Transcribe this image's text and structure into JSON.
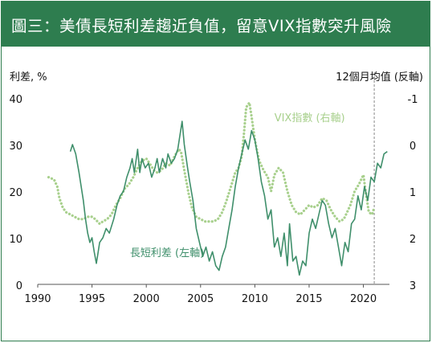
{
  "header": {
    "title": "圖三：美債長短利差趨近負值，留意VIX指數突升風險"
  },
  "chart_data": {
    "type": "line",
    "title": "圖三：美債長短利差趨近負值，留意VIX指數突升風險",
    "ylabel": "利差, %",
    "y2label": "12個月均值 (反軸)",
    "xlim": [
      1990,
      2022.4
    ],
    "ylim": [
      0,
      40
    ],
    "y2lim": [
      3,
      -1
    ],
    "y2_inverted": true,
    "x_ticks": [
      1990,
      1995,
      2000,
      2005,
      2010,
      2015,
      2020
    ],
    "y_ticks": [
      0,
      10,
      20,
      30,
      40
    ],
    "y2_ticks": [
      3,
      2,
      1,
      0,
      -1
    ],
    "vline_x": 2021.0,
    "grid": false,
    "series": [
      {
        "name": "VIX指數 (右軸)",
        "axis": "right",
        "style": "dotted",
        "color": "#a8d08d",
        "x": [
          1991.0,
          1991.5,
          1991.8,
          1992.0,
          1992.3,
          1992.6,
          1993.0,
          1993.4,
          1993.8,
          1994.2,
          1994.6,
          1995.0,
          1995.3,
          1995.7,
          1996.0,
          1996.4,
          1996.8,
          1997.2,
          1997.6,
          1998.0,
          1998.4,
          1998.8,
          1999.2,
          1999.6,
          2000.0,
          2000.3,
          2000.7,
          2001.0,
          2001.4,
          2001.8,
          2002.2,
          2002.6,
          2003.0,
          2003.2,
          2003.5,
          2003.9,
          2004.2,
          2004.6,
          2005.0,
          2005.4,
          2005.8,
          2006.2,
          2006.6,
          2007.0,
          2007.4,
          2007.8,
          2008.2,
          2008.5,
          2008.8,
          2009.0,
          2009.2,
          2009.5,
          2009.7,
          2010.0,
          2010.4,
          2010.8,
          2011.2,
          2011.5,
          2011.8,
          2012.2,
          2012.6,
          2013.0,
          2013.4,
          2013.8,
          2014.2,
          2014.6,
          2015.0,
          2015.4,
          2015.8,
          2016.2,
          2016.6,
          2017.0,
          2017.4,
          2017.8,
          2018.2,
          2018.5,
          2018.8,
          2019.2,
          2019.6,
          2020.0,
          2020.2,
          2020.5,
          2020.8,
          2021.0
        ],
        "values": [
          0.7,
          0.75,
          0.9,
          1.15,
          1.35,
          1.45,
          1.5,
          1.55,
          1.6,
          1.6,
          1.55,
          1.55,
          1.6,
          1.7,
          1.65,
          1.6,
          1.5,
          1.3,
          1.15,
          0.95,
          0.85,
          0.7,
          0.5,
          0.35,
          0.3,
          0.4,
          0.55,
          0.6,
          0.55,
          0.4,
          0.45,
          0.25,
          0.1,
          0.15,
          0.55,
          1.05,
          1.35,
          1.55,
          1.6,
          1.65,
          1.65,
          1.65,
          1.6,
          1.45,
          1.2,
          0.9,
          0.6,
          0.5,
          0.25,
          -0.25,
          -0.8,
          -0.9,
          -0.6,
          -0.1,
          0.35,
          0.55,
          0.7,
          1.0,
          0.65,
          0.5,
          0.6,
          1.0,
          1.3,
          1.45,
          1.5,
          1.4,
          1.3,
          1.35,
          1.3,
          1.15,
          1.2,
          1.4,
          1.55,
          1.65,
          1.6,
          1.45,
          1.3,
          1.0,
          0.85,
          0.65,
          1.0,
          1.45,
          1.5,
          1.35
        ]
      },
      {
        "name": "長短利差 (左軸)",
        "axis": "left",
        "style": "solid",
        "color": "#3f8f6b",
        "x": [
          1993.0,
          1993.2,
          1993.5,
          1993.8,
          1994.0,
          1994.2,
          1994.4,
          1994.6,
          1994.8,
          1995.0,
          1995.2,
          1995.4,
          1995.5,
          1995.7,
          1996.0,
          1996.3,
          1996.6,
          1997.0,
          1997.3,
          1997.6,
          1997.9,
          1998.2,
          1998.5,
          1998.7,
          1998.9,
          1999.2,
          1999.4,
          1999.6,
          1999.9,
          2000.2,
          2000.5,
          2000.8,
          2001.0,
          2001.2,
          2001.5,
          2001.8,
          2002.0,
          2002.3,
          2002.6,
          2002.9,
          2003.1,
          2003.3,
          2003.5,
          2003.8,
          2004.0,
          2004.3,
          2004.6,
          2004.9,
          2005.2,
          2005.5,
          2005.8,
          2006.1,
          2006.4,
          2006.7,
          2007.0,
          2007.3,
          2007.6,
          2007.9,
          2008.2,
          2008.5,
          2008.8,
          2009.1,
          2009.4,
          2009.7,
          2010.0,
          2010.3,
          2010.6,
          2010.9,
          2011.2,
          2011.5,
          2011.8,
          2012.1,
          2012.4,
          2012.7,
          2013.0,
          2013.2,
          2013.5,
          2013.8,
          2014.1,
          2014.4,
          2014.7,
          2015.0,
          2015.3,
          2015.6,
          2015.9,
          2016.2,
          2016.5,
          2016.8,
          2017.1,
          2017.4,
          2017.7,
          2018.0,
          2018.3,
          2018.6,
          2018.9,
          2019.2,
          2019.5,
          2019.8,
          2020.1,
          2020.4,
          2020.7,
          2021.0,
          2021.3,
          2021.6,
          2021.9,
          2022.2
        ],
        "values": [
          28.5,
          30,
          28,
          24,
          21,
          18,
          14,
          11,
          9,
          10,
          7,
          4.5,
          6,
          9,
          10,
          12,
          11,
          14,
          17,
          19,
          20,
          23,
          25,
          27,
          24,
          29,
          24,
          27,
          25,
          26,
          23,
          25,
          27,
          24,
          27,
          25,
          28,
          26,
          27,
          29,
          32,
          35,
          30,
          25,
          22,
          18,
          12,
          9,
          6,
          8,
          5,
          7,
          4,
          3,
          6,
          8,
          12,
          16,
          21,
          25,
          28,
          31,
          29,
          33,
          31,
          27,
          22,
          19,
          14,
          16,
          8,
          10,
          6,
          11,
          4,
          13,
          5,
          6,
          2,
          5,
          4,
          11,
          14,
          12,
          15,
          18,
          17,
          13,
          10,
          12,
          8,
          4,
          9,
          7,
          13,
          14,
          19,
          16,
          21,
          18,
          23,
          22,
          26,
          25,
          28,
          28.5
        ]
      }
    ],
    "annotations": [
      {
        "text": "VIX指數 (右軸)",
        "x": 2011.8,
        "y": 35,
        "color": "#a8d08d"
      },
      {
        "text": "長短利差 (左軸)",
        "x": 1998.5,
        "y": 6,
        "color": "#3f8f6b"
      }
    ]
  }
}
